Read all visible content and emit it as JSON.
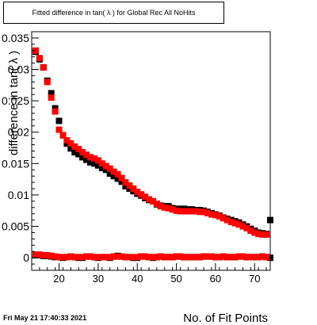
{
  "chart_data": {
    "type": "scatter",
    "title": "Fitted difference in tan( λ ) for Global Rec All NoHits",
    "xlabel": "No. of Fit Points",
    "ylabel": "difference in tan( λ )",
    "xlim": [
      13,
      74
    ],
    "ylim": [
      -0.002,
      0.036
    ],
    "xticks": [
      20,
      30,
      40,
      50,
      60,
      70
    ],
    "yticks": [
      {
        "v": 0,
        "label": "0"
      },
      {
        "v": 0.005,
        "label": "0.005"
      },
      {
        "v": 0.01,
        "label": "0.01"
      },
      {
        "v": 0.015,
        "label": "0.015"
      },
      {
        "v": 0.02,
        "label": "0.02"
      },
      {
        "v": 0.025,
        "label": "0.025"
      },
      {
        "v": 0.03,
        "label": "0.03"
      },
      {
        "v": 0.035,
        "label": "0.035"
      }
    ],
    "grid": false,
    "series": [
      {
        "color": "#000000",
        "x": [
          14,
          15,
          16,
          17,
          18,
          19,
          20,
          21,
          22,
          23,
          24,
          25,
          26,
          27,
          28,
          29,
          30,
          31,
          32,
          33,
          34,
          35,
          36,
          37,
          38,
          39,
          40,
          41,
          42,
          43,
          44,
          45,
          46,
          47,
          48,
          49,
          50,
          51,
          52,
          53,
          54,
          55,
          56,
          57,
          58,
          59,
          60,
          61,
          62,
          63,
          64,
          65,
          66,
          67,
          68,
          69,
          70,
          71,
          72,
          73,
          74
        ],
        "y": [
          0.0328,
          0.0316,
          0.0303,
          0.0282,
          0.0262,
          0.0238,
          0.0218,
          0.0195,
          0.0182,
          0.0174,
          0.0168,
          0.0165,
          0.016,
          0.0156,
          0.0152,
          0.015,
          0.0147,
          0.0143,
          0.014,
          0.0134,
          0.013,
          0.0126,
          0.0121,
          0.0114,
          0.011,
          0.0106,
          0.0102,
          0.0099,
          0.0095,
          0.0092,
          0.009,
          0.0085,
          0.0083,
          0.0082,
          0.0082,
          0.0079,
          0.0078,
          0.0078,
          0.0078,
          0.0077,
          0.0077,
          0.0076,
          0.0076,
          0.0075,
          0.0073,
          0.0071,
          0.0069,
          0.0067,
          0.0064,
          0.0062,
          0.006,
          0.0058,
          0.0056,
          0.0053,
          0.005,
          0.0046,
          0.0043,
          0.004,
          0.0039,
          0.0038,
          0.006
        ]
      },
      {
        "color": "#ff0000",
        "x": [
          14,
          15,
          16,
          17,
          18,
          19,
          20,
          21,
          22,
          23,
          24,
          25,
          26,
          27,
          28,
          29,
          30,
          31,
          32,
          33,
          34,
          35,
          36,
          37,
          38,
          39,
          40,
          41,
          42,
          43,
          44,
          45,
          46,
          47,
          48,
          49,
          50,
          51,
          52,
          53,
          54,
          55,
          56,
          57,
          58,
          59,
          60,
          61,
          62,
          63,
          64,
          65,
          66,
          67,
          68,
          69,
          70,
          71,
          72,
          73
        ],
        "y": [
          0.033,
          0.0318,
          0.0303,
          0.028,
          0.0255,
          0.0233,
          0.0204,
          0.0195,
          0.0187,
          0.0182,
          0.0177,
          0.0173,
          0.0168,
          0.0164,
          0.016,
          0.0158,
          0.0155,
          0.015,
          0.0146,
          0.0142,
          0.0137,
          0.0133,
          0.0127,
          0.012,
          0.0115,
          0.011,
          0.0105,
          0.0101,
          0.0097,
          0.0093,
          0.009,
          0.0086,
          0.0082,
          0.008,
          0.0079,
          0.0077,
          0.0075,
          0.0074,
          0.0074,
          0.0074,
          0.0074,
          0.0074,
          0.0073,
          0.0073,
          0.0071,
          0.0069,
          0.0068,
          0.0066,
          0.0063,
          0.006,
          0.0057,
          0.0055,
          0.0053,
          0.005,
          0.0047,
          0.0043,
          0.004,
          0.0038,
          0.0037,
          0.0037
        ]
      },
      {
        "color": "#000000",
        "x": [
          14,
          15,
          16,
          17,
          18,
          19,
          20,
          21,
          22,
          23,
          24,
          25,
          26,
          27,
          28,
          29,
          30,
          31,
          32,
          33,
          34,
          35,
          36,
          37,
          38,
          39,
          40,
          41,
          42,
          43,
          44,
          45,
          46,
          47,
          48,
          49,
          50,
          51,
          52,
          53,
          54,
          55,
          56,
          57,
          58,
          59,
          60,
          61,
          62,
          63,
          64,
          65,
          66,
          67,
          68,
          69,
          70,
          71,
          72,
          73,
          74
        ],
        "y": [
          0.0004,
          0.0004,
          0.0003,
          0.0003,
          0.0002,
          0.0001,
          0.0001,
          0.0,
          0.0001,
          0.0002,
          0.0001,
          0.0,
          0.0,
          0.0002,
          0.0002,
          0.0001,
          0.0,
          0.0001,
          0.0001,
          0.0,
          0.0002,
          0.0003,
          0.0002,
          0.0001,
          0.0001,
          0.0,
          0.0,
          0.0002,
          0.0002,
          0.0001,
          0.0,
          0.0001,
          0.0002,
          0.0001,
          0.0001,
          0.0001,
          0.0002,
          0.0002,
          0.0001,
          0.0001,
          0.0001,
          0.0001,
          0.0001,
          0.0002,
          0.0002,
          0.0002,
          0.0001,
          0.0001,
          0.0002,
          0.0001,
          0.0001,
          0.0001,
          0.0002,
          0.0002,
          0.0001,
          0.0001,
          0.0001,
          0.0001,
          0.0002,
          0.0001,
          0.0
        ]
      },
      {
        "color": "#ff0000",
        "x": [
          14,
          15,
          16,
          17,
          18,
          19,
          20,
          21,
          22,
          23,
          24,
          25,
          26,
          27,
          28,
          29,
          30,
          31,
          32,
          33,
          34,
          35,
          36,
          37,
          38,
          39,
          40,
          41,
          42,
          43,
          44,
          45,
          46,
          47,
          48,
          49,
          50,
          51,
          52,
          53,
          54,
          55,
          56,
          57,
          58,
          59,
          60,
          61,
          62,
          63,
          64,
          65,
          66,
          67,
          68,
          69,
          70,
          71,
          72,
          73
        ],
        "y": [
          0.0005,
          0.0005,
          0.0004,
          0.0004,
          0.0003,
          0.0002,
          0.0001,
          0.0001,
          0.0001,
          0.0002,
          0.0001,
          0.0001,
          0.0001,
          0.0002,
          0.0002,
          0.0001,
          0.0001,
          0.0001,
          0.0001,
          0.0001,
          0.0002,
          0.0002,
          0.0002,
          0.0001,
          0.0001,
          0.0001,
          0.0001,
          0.0002,
          0.0002,
          0.0001,
          0.0001,
          0.0001,
          0.0002,
          0.0001,
          0.0001,
          0.0001,
          0.0002,
          0.0002,
          0.0001,
          0.0001,
          0.0001,
          0.0001,
          0.0001,
          0.0002,
          0.0002,
          0.0002,
          0.0001,
          0.0001,
          0.0002,
          0.0001,
          0.0001,
          0.0001,
          0.0002,
          0.0002,
          0.0001,
          0.0001,
          0.0001,
          0.0001,
          0.0002,
          0.0001
        ]
      }
    ]
  },
  "footer": {
    "datestamp": "Fri May 21 17:40:33 2021"
  }
}
